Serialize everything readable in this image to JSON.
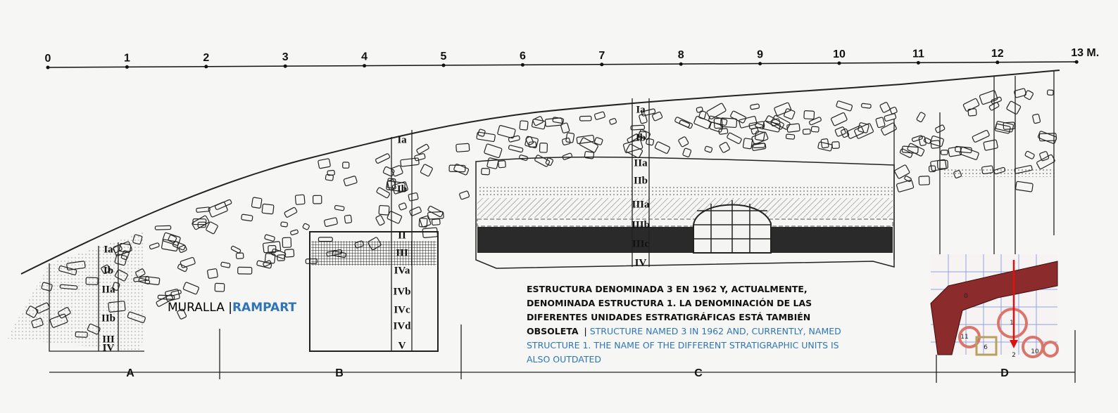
{
  "scale": {
    "labels": [
      "0",
      "1",
      "2",
      "3",
      "4",
      "5",
      "6",
      "7",
      "8",
      "9",
      "10",
      "11",
      "12",
      "13 M."
    ]
  },
  "sections": [
    "A",
    "B",
    "C",
    "D"
  ],
  "profiles": [
    {
      "units": [
        "Ia",
        "Ib",
        "IIa",
        "IIb",
        "III",
        "IV"
      ]
    },
    {
      "units": [
        "Ia",
        "Ib",
        "II",
        "III",
        "IVa",
        "IVb",
        "IVc",
        "IVd",
        "V"
      ]
    },
    {
      "units": [
        "Ia",
        "Ib",
        "IIa",
        "IIb",
        "IIIa",
        "IIIb",
        "IIIc",
        "IV"
      ]
    }
  ],
  "wall_label": {
    "es": "MURALLA",
    "sep": "|",
    "en": "RAMPART"
  },
  "caption": {
    "es": "ESTRUCTURA DENOMINADA 3 EN 1962 Y, ACTUALMENTE, DENOMINADA ESTRUCTURA 1. LA DENOMINACIÓN DE LAS DIFERENTES UNIDADES ESTRATIGRÁFICAS ESTÁ TAMBIÉN OBSOLETA",
    "sep": "|",
    "en": "STRUCTURE NAMED 3 IN 1962 AND, CURRENTLY, NAMED STRUCTURE 1. THE NAME OF THE DIFFERENT STRATIGRAPHIC UNITS IS ALSO OUTDATED"
  },
  "inset": {
    "labels": [
      "0",
      "1",
      "11",
      "6",
      "2",
      "10"
    ]
  }
}
